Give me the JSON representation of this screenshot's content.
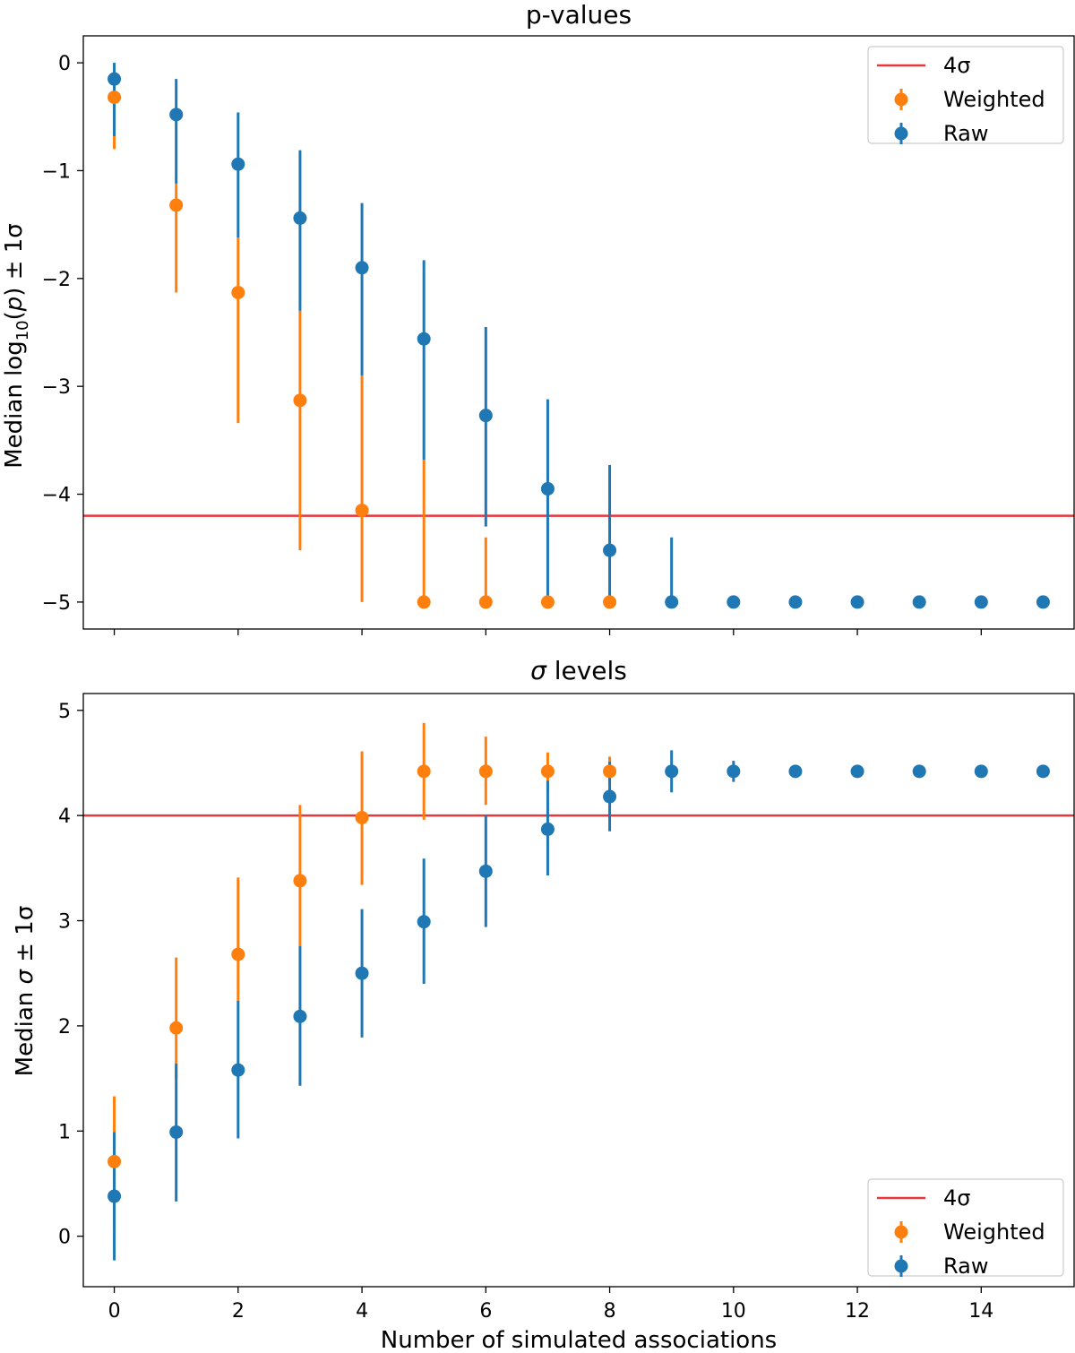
{
  "figure": {
    "xlabel": "Number of simulated associations"
  },
  "colors": {
    "raw": "#1f77b4",
    "weighted": "#ff7f0e",
    "threshold": "#e8363b"
  },
  "chart_data": [
    {
      "type": "scatter",
      "title": "p-values",
      "xlabel": "",
      "ylabel": "Median log10(p) ± 1σ",
      "xlim": [
        -0.5,
        15.5
      ],
      "ylim": [
        -5.25,
        0.25
      ],
      "x_ticks": [
        0,
        2,
        4,
        6,
        8,
        10,
        12,
        14
      ],
      "x_tick_labels_shown": false,
      "y_ticks": [
        0,
        -1,
        -2,
        -3,
        -4,
        -5
      ],
      "y_tick_labels": [
        "0",
        "−1",
        "−2",
        "−3",
        "−4",
        "−5"
      ],
      "hline": {
        "y": -4.2,
        "label": "4σ"
      },
      "legend": {
        "location": "upper right",
        "entries": [
          "4σ",
          "Weighted",
          "Raw"
        ]
      },
      "series": [
        {
          "name": "Weighted",
          "x": [
            0,
            1,
            2,
            3,
            4,
            5,
            6,
            7,
            8
          ],
          "y": [
            -0.32,
            -1.32,
            -2.13,
            -3.13,
            -4.15,
            -5.0,
            -5.0,
            -5.0,
            -5.0
          ],
          "err_low": [
            -0.8,
            -2.13,
            -3.34,
            -4.52,
            -5.0,
            -5.0,
            -5.0,
            -5.0,
            -5.0
          ],
          "err_high": [
            -0.32,
            -1.12,
            -1.62,
            -2.3,
            -2.9,
            -3.68,
            -4.4,
            -5.0,
            -5.0
          ]
        },
        {
          "name": "Raw",
          "x": [
            0,
            1,
            2,
            3,
            4,
            5,
            6,
            7,
            8,
            9,
            10,
            11,
            12,
            13,
            14,
            15
          ],
          "y": [
            -0.15,
            -0.48,
            -0.94,
            -1.44,
            -1.9,
            -2.56,
            -3.27,
            -3.95,
            -4.52,
            -5.0,
            -5.0,
            -5.0,
            -5.0,
            -5.0,
            -5.0,
            -5.0
          ],
          "err_low": [
            -0.68,
            -1.12,
            -1.62,
            -2.3,
            -2.9,
            -3.68,
            -4.3,
            -5.0,
            -5.0,
            -5.0,
            -5.0,
            -5.0,
            -5.0,
            -5.0,
            -5.0,
            -5.0
          ],
          "err_high": [
            0.0,
            -0.15,
            -0.46,
            -0.81,
            -1.3,
            -1.83,
            -2.45,
            -3.12,
            -3.73,
            -4.4,
            -5.0,
            -5.0,
            -5.0,
            -5.0,
            -5.0,
            -5.0
          ]
        }
      ]
    },
    {
      "type": "scatter",
      "title": "σ levels",
      "xlabel": "Number of simulated associations",
      "ylabel": "Median σ ± 1σ",
      "xlim": [
        -0.5,
        15.5
      ],
      "ylim": [
        -0.48,
        5.16
      ],
      "x_ticks": [
        0,
        2,
        4,
        6,
        8,
        10,
        12,
        14
      ],
      "x_tick_labels": [
        "0",
        "2",
        "4",
        "6",
        "8",
        "10",
        "12",
        "14"
      ],
      "y_ticks": [
        0,
        1,
        2,
        3,
        4,
        5
      ],
      "y_tick_labels": [
        "0",
        "1",
        "2",
        "3",
        "4",
        "5"
      ],
      "hline": {
        "y": 4.0,
        "label": "4σ"
      },
      "legend": {
        "location": "lower right",
        "entries": [
          "4σ",
          "Weighted",
          "Raw"
        ]
      },
      "series": [
        {
          "name": "Weighted",
          "x": [
            0,
            1,
            2,
            3,
            4,
            5,
            6,
            7,
            8
          ],
          "y": [
            0.71,
            1.98,
            2.68,
            3.38,
            3.98,
            4.42,
            4.42,
            4.42,
            4.42
          ],
          "err_low": [
            0.07,
            1.5,
            2.24,
            2.76,
            3.34,
            3.96,
            4.1,
            4.22,
            4.3
          ],
          "err_high": [
            1.33,
            2.65,
            3.41,
            4.1,
            4.61,
            4.88,
            4.75,
            4.6,
            4.56
          ]
        },
        {
          "name": "Raw",
          "x": [
            0,
            1,
            2,
            3,
            4,
            5,
            6,
            7,
            8,
            9,
            10,
            11,
            12,
            13,
            14,
            15
          ],
          "y": [
            0.38,
            0.99,
            1.58,
            2.09,
            2.5,
            2.99,
            3.47,
            3.87,
            4.18,
            4.42,
            4.42,
            4.42,
            4.42,
            4.42,
            4.42,
            4.42
          ],
          "err_low": [
            -0.23,
            0.33,
            0.93,
            1.43,
            1.89,
            2.4,
            2.94,
            3.43,
            3.85,
            4.22,
            4.32,
            4.42,
            4.42,
            4.42,
            4.42,
            4.42
          ],
          "err_high": [
            0.99,
            1.64,
            2.24,
            2.76,
            3.11,
            3.59,
            4.0,
            4.33,
            4.51,
            4.62,
            4.52,
            4.42,
            4.42,
            4.42,
            4.42,
            4.42
          ]
        }
      ]
    }
  ]
}
